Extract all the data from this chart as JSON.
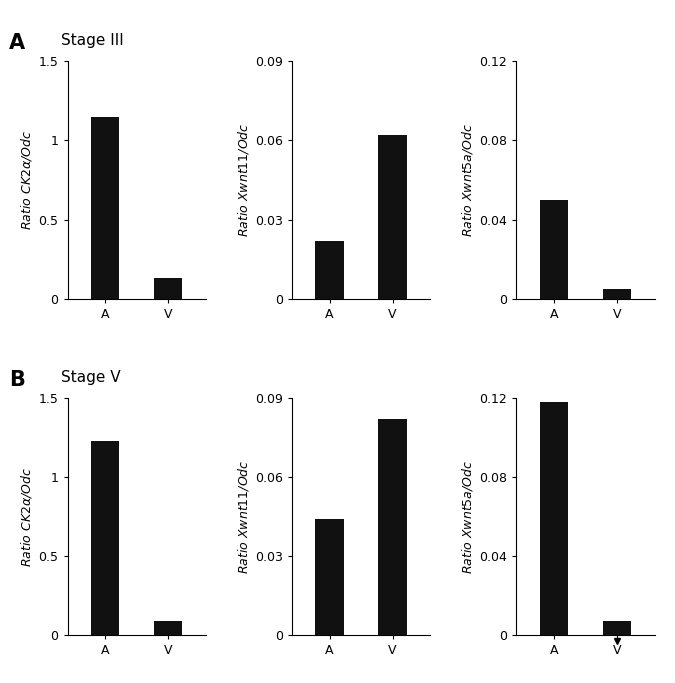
{
  "row_A": {
    "title": "Stage III",
    "panels": [
      {
        "ylabel": "Ratio $CK2\\alpha$/$Odc$",
        "yticks": [
          0,
          0.5,
          1.0,
          1.5
        ],
        "ylim": [
          0,
          1.5
        ],
        "categories": [
          "A",
          "V"
        ],
        "values": [
          1.15,
          0.13
        ],
        "has_triangle": false
      },
      {
        "ylabel": "Ratio $Xwnt11$/$Odc$",
        "yticks": [
          0,
          0.03,
          0.06,
          0.09
        ],
        "ylim": [
          0,
          0.09
        ],
        "categories": [
          "A",
          "V"
        ],
        "values": [
          0.022,
          0.062
        ],
        "has_triangle": false
      },
      {
        "ylabel": "Ratio $Xwnt5a$/$Odc$",
        "yticks": [
          0,
          0.04,
          0.08,
          0.12
        ],
        "ylim": [
          0,
          0.12
        ],
        "categories": [
          "A",
          "V"
        ],
        "values": [
          0.05,
          0.005
        ],
        "has_triangle": false
      }
    ]
  },
  "row_B": {
    "title": "Stage V",
    "panels": [
      {
        "ylabel": "Ratio $CK2\\alpha$/$Odc$",
        "yticks": [
          0,
          0.5,
          1.0,
          1.5
        ],
        "ylim": [
          0,
          1.5
        ],
        "categories": [
          "A",
          "V"
        ],
        "values": [
          1.23,
          0.09
        ],
        "has_triangle": false
      },
      {
        "ylabel": "Ratio $Xwnt11$/$Odc$",
        "yticks": [
          0,
          0.03,
          0.06,
          0.09
        ],
        "ylim": [
          0,
          0.09
        ],
        "categories": [
          "A",
          "V"
        ],
        "values": [
          0.044,
          0.082
        ],
        "has_triangle": false
      },
      {
        "ylabel": "Ratio $Xwnt5a$/$Odc$",
        "yticks": [
          0,
          0.04,
          0.08,
          0.12
        ],
        "ylim": [
          0,
          0.12
        ],
        "categories": [
          "A",
          "V"
        ],
        "values": [
          0.118,
          0.007
        ],
        "has_triangle": true
      }
    ]
  },
  "bar_color": "#111111",
  "bar_width": 0.45,
  "label_A": "A",
  "label_B": "B",
  "title_fontsize": 11,
  "label_fontsize": 15,
  "tick_fontsize": 9,
  "ylabel_fontsize": 9
}
